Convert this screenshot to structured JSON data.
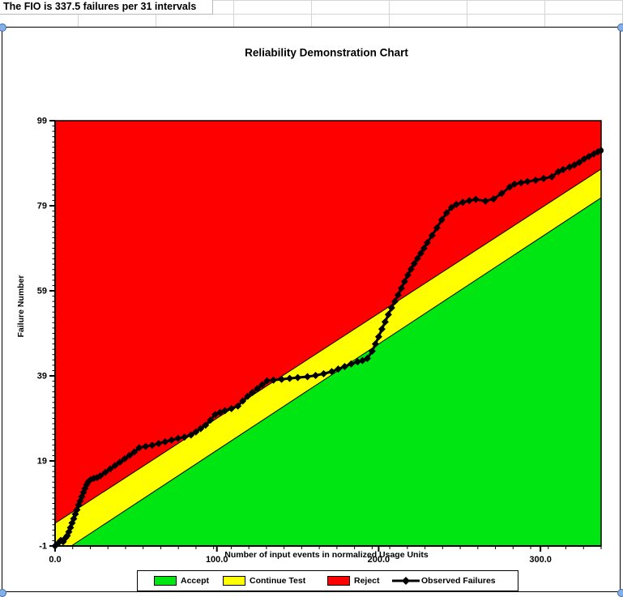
{
  "spreadsheet": {
    "cell_text": "The FIO is 337.5 failures per 31 intervals"
  },
  "chart_data": {
    "type": "area",
    "title": "Reliability Demonstration Chart",
    "xlabel": "Number of input events in normalized Usage Units",
    "ylabel": "Failure Number",
    "xlim": [
      0,
      337.5
    ],
    "ylim": [
      -1,
      99
    ],
    "x_major_ticks": [
      {
        "value": 0,
        "label": "0.0"
      },
      {
        "value": 100,
        "label": "100.0"
      },
      {
        "value": 200,
        "label": "200.0"
      },
      {
        "value": 300,
        "label": "300.0"
      }
    ],
    "y_major_ticks": [
      {
        "value": -1,
        "label": "-1"
      },
      {
        "value": 19,
        "label": "19"
      },
      {
        "value": 39,
        "label": "39"
      },
      {
        "value": 59,
        "label": "59"
      },
      {
        "value": 79,
        "label": "79"
      },
      {
        "value": 99,
        "label": "99"
      }
    ],
    "x_minor_step": 10.887,
    "y_minor_step": 1.25,
    "regions": {
      "accept": {
        "label": "Accept",
        "color": "#00E613",
        "intercept": -3.5,
        "slope": 0.25
      },
      "continue": {
        "label": "Continue Test",
        "color": "#FFFF00"
      },
      "reject": {
        "label": "Reject",
        "color": "#FF0000",
        "intercept": 4.33,
        "slope": 0.2468
      }
    },
    "series": [
      {
        "name": "Observed Failures",
        "color": "#000000",
        "points": [
          [
            0,
            -1
          ],
          [
            2,
            -0.3
          ],
          [
            3.5,
            0.3
          ],
          [
            5,
            0
          ],
          [
            6.5,
            0.9
          ],
          [
            7.5,
            1.4
          ],
          [
            8.5,
            2.3
          ],
          [
            9.5,
            3.3
          ],
          [
            10.5,
            4.4
          ],
          [
            11.5,
            5.4
          ],
          [
            12.5,
            6.5
          ],
          [
            13.5,
            7.5
          ],
          [
            14.5,
            8.6
          ],
          [
            15.5,
            9.6
          ],
          [
            16.5,
            10.6
          ],
          [
            17.5,
            11.6
          ],
          [
            18.5,
            12.5
          ],
          [
            19.5,
            13.4
          ],
          [
            20.5,
            14.1
          ],
          [
            22,
            14.6
          ],
          [
            24,
            14.9
          ],
          [
            26,
            15.1
          ],
          [
            28,
            15.5
          ],
          [
            31,
            16.3
          ],
          [
            34,
            17.1
          ],
          [
            37,
            17.9
          ],
          [
            40,
            18.7
          ],
          [
            43,
            19.5
          ],
          [
            46,
            20.3
          ],
          [
            49,
            21.1
          ],
          [
            52,
            22.1
          ],
          [
            56,
            22.4
          ],
          [
            60,
            22.7
          ],
          [
            64,
            23.1
          ],
          [
            68,
            23.5
          ],
          [
            72,
            23.9
          ],
          [
            76,
            24.3
          ],
          [
            80,
            24.6
          ],
          [
            84,
            25.1
          ],
          [
            87,
            25.8
          ],
          [
            90,
            26.6
          ],
          [
            93,
            27.4
          ],
          [
            96,
            28.6
          ],
          [
            99,
            29.9
          ],
          [
            102,
            30.4
          ],
          [
            105,
            30.8
          ],
          [
            109,
            31.3
          ],
          [
            113,
            31.9
          ],
          [
            116,
            33.1
          ],
          [
            119,
            34.2
          ],
          [
            122,
            35.1
          ],
          [
            125,
            36
          ],
          [
            128,
            36.9
          ],
          [
            131,
            37.8
          ],
          [
            135,
            38
          ],
          [
            140,
            38.2
          ],
          [
            145,
            38.4
          ],
          [
            150,
            38.6
          ],
          [
            156,
            38.8
          ],
          [
            161,
            39.1
          ],
          [
            166,
            39.5
          ],
          [
            171,
            40
          ],
          [
            175,
            40.6
          ],
          [
            179,
            41.2
          ],
          [
            183,
            41.8
          ],
          [
            187,
            42.3
          ],
          [
            190,
            42.6
          ],
          [
            193,
            43.1
          ],
          [
            196,
            44.8
          ],
          [
            198,
            46.5
          ],
          [
            200,
            48.2
          ],
          [
            202,
            50
          ],
          [
            204,
            51.7
          ],
          [
            206,
            53.4
          ],
          [
            208,
            55
          ],
          [
            210,
            56.5
          ],
          [
            212,
            58
          ],
          [
            214,
            59.6
          ],
          [
            216,
            61.2
          ],
          [
            218,
            62.7
          ],
          [
            220,
            64.1
          ],
          [
            222,
            65.4
          ],
          [
            224,
            66.6
          ],
          [
            226,
            67.8
          ],
          [
            228,
            69
          ],
          [
            230,
            70.3
          ],
          [
            233,
            72
          ],
          [
            236,
            73.8
          ],
          [
            239,
            75.7
          ],
          [
            242,
            77.3
          ],
          [
            245,
            78.6
          ],
          [
            248,
            79.3
          ],
          [
            252,
            79.8
          ],
          [
            256,
            80.2
          ],
          [
            260,
            80.5
          ],
          [
            266,
            80.1
          ],
          [
            271,
            80.6
          ],
          [
            276,
            81.9
          ],
          [
            281,
            83.4
          ],
          [
            284,
            84.1
          ],
          [
            288,
            84.4
          ],
          [
            292,
            84.7
          ],
          [
            297,
            85
          ],
          [
            302,
            85.4
          ],
          [
            307,
            85.8
          ],
          [
            311,
            87
          ],
          [
            314,
            87.5
          ],
          [
            318,
            88.1
          ],
          [
            321,
            88.6
          ],
          [
            324,
            89.2
          ],
          [
            327,
            90
          ],
          [
            330,
            90.6
          ],
          [
            333,
            91.2
          ],
          [
            335.5,
            91.7
          ],
          [
            337.5,
            92
          ]
        ]
      }
    ],
    "legend": [
      {
        "label": "Accept",
        "color": "#00E613",
        "type": "box"
      },
      {
        "label": "Continue Test",
        "color": "#FFFF00",
        "type": "box"
      },
      {
        "label": "Reject",
        "color": "#FF0000",
        "type": "box"
      },
      {
        "label": "Observed Failures",
        "color": "#000000",
        "type": "line-diamond"
      }
    ]
  }
}
